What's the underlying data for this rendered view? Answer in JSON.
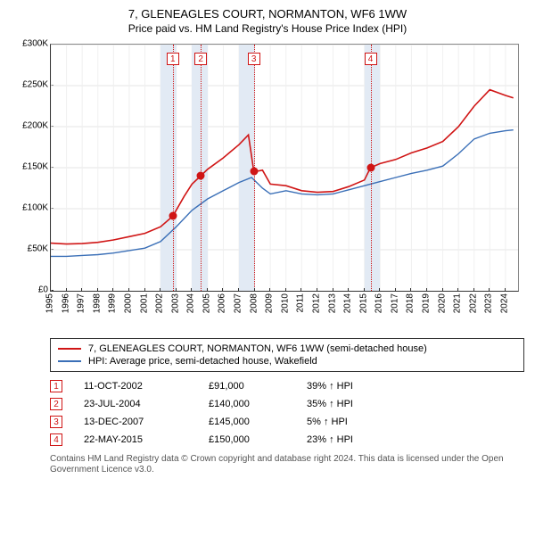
{
  "title": "7, GLENEAGLES COURT, NORMANTON, WF6 1WW",
  "subtitle": "Price paid vs. HM Land Registry's House Price Index (HPI)",
  "chart": {
    "type": "line",
    "background_color": "#ffffff",
    "grid_color": "#e4e4e4",
    "axis_color": "#333333",
    "label_fontsize": 10,
    "xlim": [
      1995,
      2024.8
    ],
    "ylim": [
      0,
      300000
    ],
    "ytick_step": 50000,
    "yticks": [
      "£0",
      "£50K",
      "£100K",
      "£150K",
      "£200K",
      "£250K",
      "£300K"
    ],
    "xticks": [
      1995,
      1996,
      1997,
      1998,
      1999,
      2000,
      2001,
      2002,
      2003,
      2004,
      2005,
      2006,
      2007,
      2008,
      2009,
      2010,
      2011,
      2012,
      2013,
      2014,
      2015,
      2016,
      2017,
      2018,
      2019,
      2020,
      2021,
      2022,
      2023,
      2024
    ],
    "marker_band_color": "#e2eaf4",
    "marker_line_color": "#d01515",
    "marker_line_style": "dotted",
    "markers": [
      {
        "label": "1",
        "x": 2002.78
      },
      {
        "label": "2",
        "x": 2004.56
      },
      {
        "label": "3",
        "x": 2007.95
      },
      {
        "label": "4",
        "x": 2015.39
      }
    ],
    "series": [
      {
        "name": "7, GLENEAGLES COURT, NORMANTON, WF6 1WW (semi-detached house)",
        "color": "#d01515",
        "line_width": 1.6,
        "data": [
          [
            1995,
            58000
          ],
          [
            1996,
            57000
          ],
          [
            1997,
            57500
          ],
          [
            1998,
            59000
          ],
          [
            1999,
            62000
          ],
          [
            2000,
            66000
          ],
          [
            2001,
            70000
          ],
          [
            2002,
            78000
          ],
          [
            2002.78,
            91000
          ],
          [
            2003.5,
            115000
          ],
          [
            2004,
            130000
          ],
          [
            2004.56,
            140000
          ],
          [
            2005,
            148000
          ],
          [
            2006,
            162000
          ],
          [
            2007,
            178000
          ],
          [
            2007.6,
            190000
          ],
          [
            2007.95,
            145000
          ],
          [
            2008.5,
            147000
          ],
          [
            2009,
            130000
          ],
          [
            2010,
            128000
          ],
          [
            2011,
            122000
          ],
          [
            2012,
            120000
          ],
          [
            2013,
            121000
          ],
          [
            2014,
            127000
          ],
          [
            2015,
            135000
          ],
          [
            2015.39,
            150000
          ],
          [
            2016,
            155000
          ],
          [
            2017,
            160000
          ],
          [
            2018,
            168000
          ],
          [
            2019,
            174000
          ],
          [
            2020,
            182000
          ],
          [
            2021,
            200000
          ],
          [
            2022,
            225000
          ],
          [
            2023,
            245000
          ],
          [
            2024,
            238000
          ],
          [
            2024.5,
            235000
          ]
        ]
      },
      {
        "name": "HPI: Average price, semi-detached house, Wakefield",
        "color": "#3a6fb7",
        "line_width": 1.4,
        "data": [
          [
            1995,
            42000
          ],
          [
            1996,
            42000
          ],
          [
            1997,
            43000
          ],
          [
            1998,
            44000
          ],
          [
            1999,
            46000
          ],
          [
            2000,
            49000
          ],
          [
            2001,
            52000
          ],
          [
            2002,
            60000
          ],
          [
            2003,
            78000
          ],
          [
            2004,
            98000
          ],
          [
            2005,
            112000
          ],
          [
            2006,
            122000
          ],
          [
            2007,
            132000
          ],
          [
            2007.8,
            138000
          ],
          [
            2008.5,
            125000
          ],
          [
            2009,
            118000
          ],
          [
            2010,
            122000
          ],
          [
            2011,
            118000
          ],
          [
            2012,
            117000
          ],
          [
            2013,
            118000
          ],
          [
            2014,
            123000
          ],
          [
            2015,
            128000
          ],
          [
            2016,
            133000
          ],
          [
            2017,
            138000
          ],
          [
            2018,
            143000
          ],
          [
            2019,
            147000
          ],
          [
            2020,
            152000
          ],
          [
            2021,
            167000
          ],
          [
            2022,
            185000
          ],
          [
            2023,
            192000
          ],
          [
            2024,
            195000
          ],
          [
            2024.5,
            196000
          ]
        ]
      }
    ],
    "sale_points": [
      {
        "x": 2002.78,
        "y": 91000
      },
      {
        "x": 2004.56,
        "y": 140000
      },
      {
        "x": 2007.95,
        "y": 145000
      },
      {
        "x": 2015.39,
        "y": 150000
      }
    ]
  },
  "legend": {
    "items": [
      {
        "color": "#d01515",
        "label": "7, GLENEAGLES COURT, NORMANTON, WF6 1WW (semi-detached house)"
      },
      {
        "color": "#3a6fb7",
        "label": "HPI: Average price, semi-detached house, Wakefield"
      }
    ]
  },
  "transactions": [
    {
      "badge": "1",
      "date": "11-OCT-2002",
      "price": "£91,000",
      "hpi": "39% ↑ HPI"
    },
    {
      "badge": "2",
      "date": "23-JUL-2004",
      "price": "£140,000",
      "hpi": "35% ↑ HPI"
    },
    {
      "badge": "3",
      "date": "13-DEC-2007",
      "price": "£145,000",
      "hpi": "5% ↑ HPI"
    },
    {
      "badge": "4",
      "date": "22-MAY-2015",
      "price": "£150,000",
      "hpi": "23% ↑ HPI"
    }
  ],
  "footnote": "Contains HM Land Registry data © Crown copyright and database right 2024. This data is licensed under the Open Government Licence v3.0."
}
